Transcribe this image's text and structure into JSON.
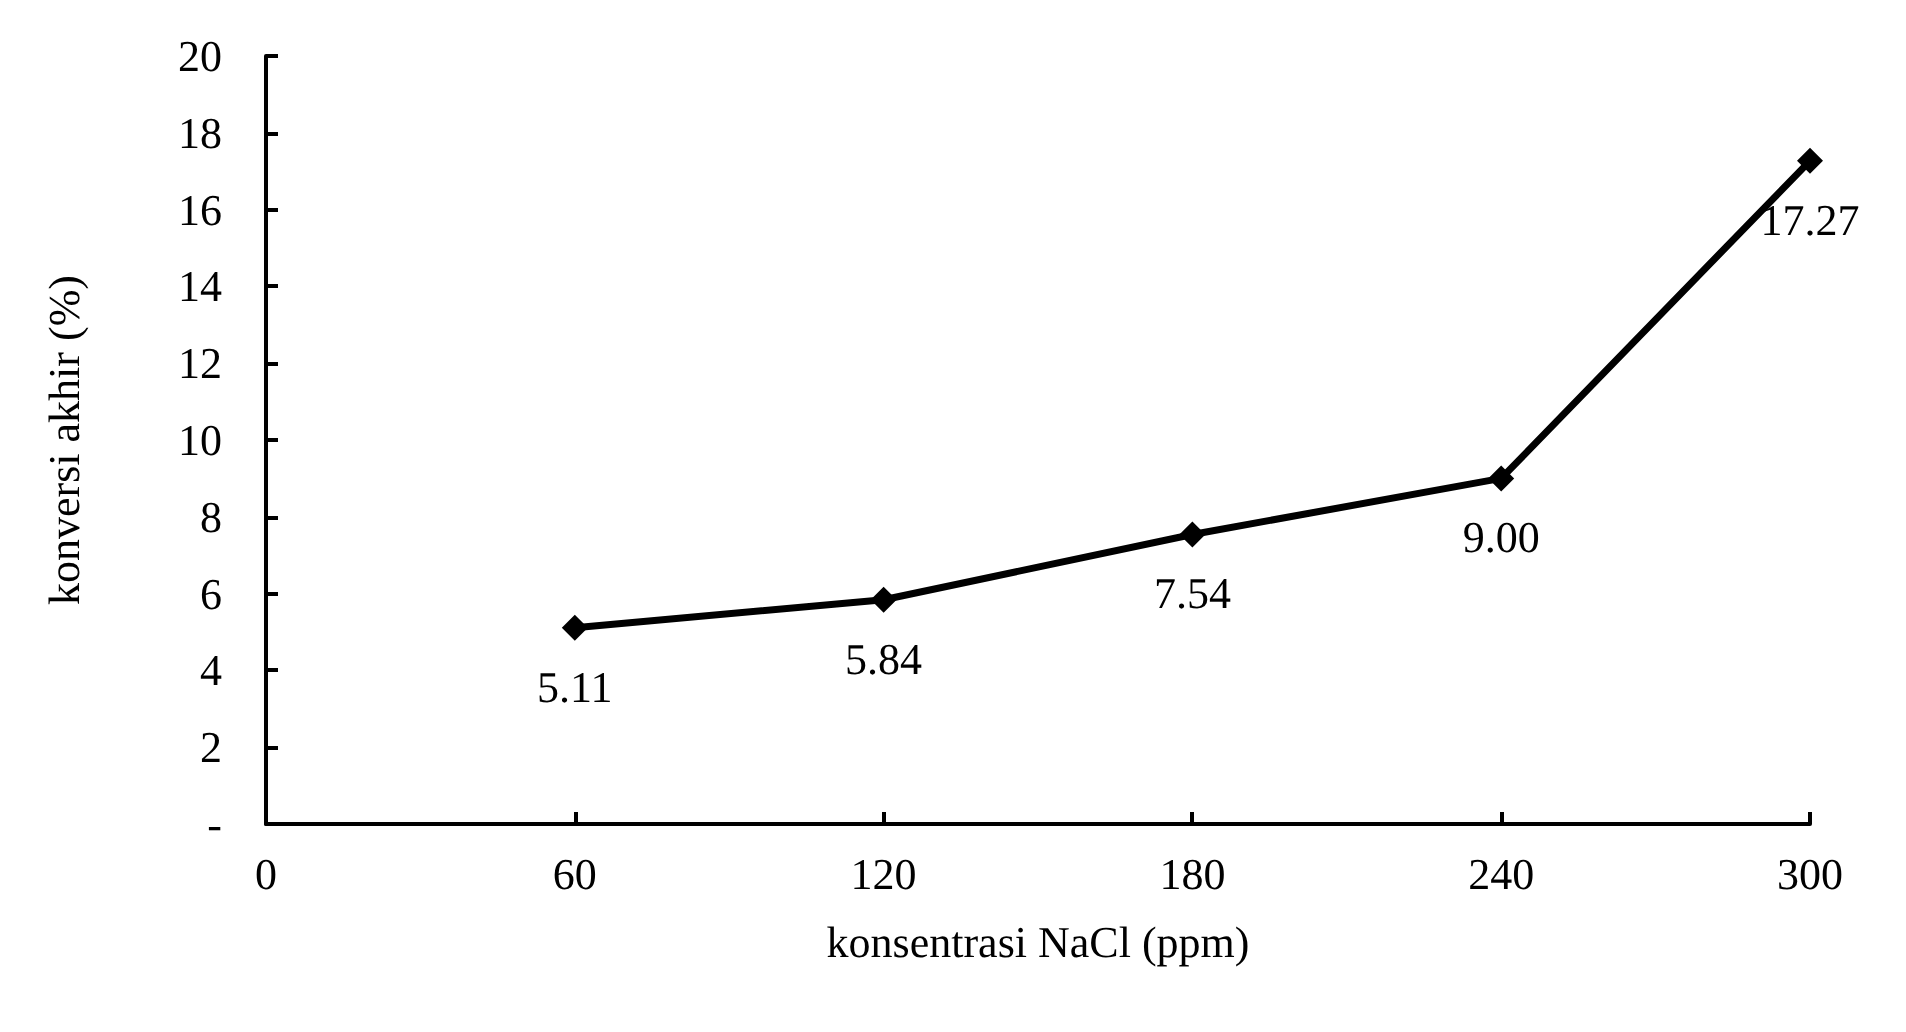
{
  "chart_data": {
    "type": "line",
    "xlabel": "konsentrasi NaCl (ppm)",
    "ylabel": "konversi akhir (%)",
    "x": [
      60,
      120,
      180,
      240,
      300
    ],
    "series": [
      {
        "color": "#000000",
        "values": [
          5.11,
          5.84,
          7.54,
          9.0,
          17.27
        ],
        "value_labels": [
          "5.11",
          "5.84",
          "7.54",
          "9.00",
          "17.27"
        ]
      }
    ],
    "xlim": [
      0,
      300
    ],
    "xticks": [
      0,
      60,
      120,
      180,
      240,
      300
    ],
    "ylim": [
      0,
      20
    ],
    "yticks": [
      {
        "value": 0,
        "label": "-"
      },
      2,
      4,
      6,
      8,
      10,
      12,
      14,
      16,
      18,
      20
    ],
    "marker": "diamond",
    "line_style": "solid",
    "grid": false
  }
}
